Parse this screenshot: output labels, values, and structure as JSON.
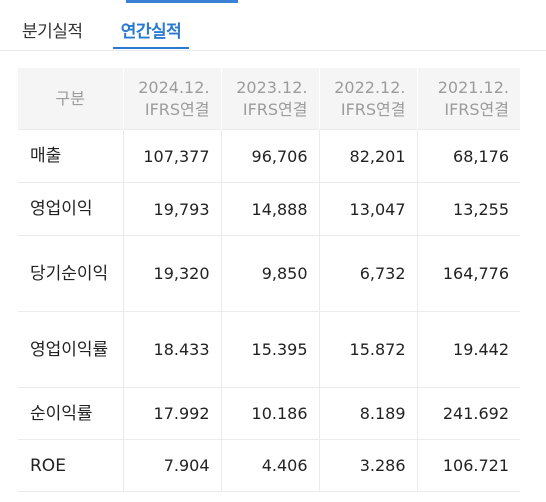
{
  "tabs": {
    "quarterly": "분기실적",
    "annual": "연간실적"
  },
  "colors": {
    "accent": "#2a7bd0",
    "header_bg": "#f5f5f5",
    "header_text": "#9c9c9c"
  },
  "table": {
    "header_label": "구분",
    "columns": [
      {
        "period": "2024.12.",
        "basis": "IFRS연결"
      },
      {
        "period": "2023.12.",
        "basis": "IFRS연결"
      },
      {
        "period": "2022.12.",
        "basis": "IFRS연결"
      },
      {
        "period": "2021.12.",
        "basis": "IFRS연결"
      }
    ],
    "rows": [
      {
        "label": "매출",
        "values": [
          "107,377",
          "96,706",
          "82,201",
          "68,176"
        ]
      },
      {
        "label": "영업이익",
        "values": [
          "19,793",
          "14,888",
          "13,047",
          "13,255"
        ]
      },
      {
        "label": "당기순이익",
        "values": [
          "19,320",
          "9,850",
          "6,732",
          "164,776"
        ]
      },
      {
        "label": "영업이익률",
        "values": [
          "18.433",
          "15.395",
          "15.872",
          "19.442"
        ]
      },
      {
        "label": "순이익률",
        "values": [
          "17.992",
          "10.186",
          "8.189",
          "241.692"
        ]
      },
      {
        "label": "ROE",
        "values": [
          "7.904",
          "4.406",
          "3.286",
          "106.721"
        ]
      }
    ]
  }
}
